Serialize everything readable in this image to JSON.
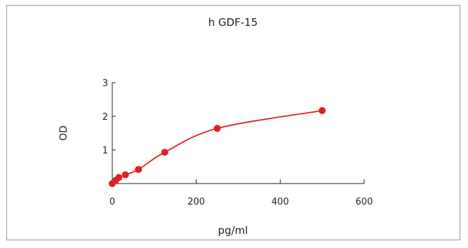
{
  "chart_data": {
    "type": "line",
    "title": "h GDF-15",
    "xlabel": "pg/ml",
    "ylabel": "OD",
    "xlim": [
      0,
      600
    ],
    "ylim": [
      0,
      3
    ],
    "x_ticks": [
      "0",
      "200",
      "400",
      "600"
    ],
    "y_ticks": [
      "1",
      "2",
      "3"
    ],
    "series": [
      {
        "points": [
          {
            "x": 0,
            "y": 0.0
          },
          {
            "x": 7.8,
            "y": 0.09
          },
          {
            "x": 15.6,
            "y": 0.18
          },
          {
            "x": 31.3,
            "y": 0.26
          },
          {
            "x": 62.5,
            "y": 0.42
          },
          {
            "x": 125,
            "y": 0.93
          },
          {
            "x": 250,
            "y": 1.64
          },
          {
            "x": 500,
            "y": 2.17
          }
        ]
      }
    ],
    "color": "#e31e24",
    "grid": false
  }
}
